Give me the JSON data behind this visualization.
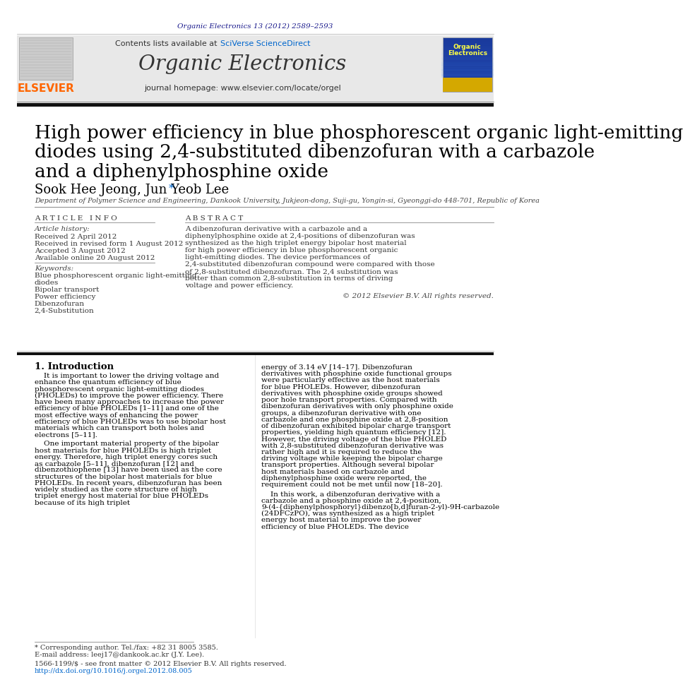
{
  "page_bg": "#ffffff",
  "journal_ref": "Organic Electronics 13 (2012) 2589–2593",
  "journal_ref_color": "#1a1a8c",
  "header_bg": "#e8e8e8",
  "journal_name": "Organic Electronics",
  "sciverse_color": "#0066cc",
  "homepage_line": "journal homepage: www.elsevier.com/locate/orgel",
  "elsevier_color": "#ff6600",
  "elsevier_text": "ELSEVIER",
  "title_line1": "High power efficiency in blue phosphorescent organic light-emitting",
  "title_line2": "diodes using 2,4-substituted dibenzofuran with a carbazole",
  "title_line3": "and a diphenylphosphine oxide",
  "authors_main": "Sook Hee Jeong, Jun Yeob Lee ",
  "authors_star": "*",
  "affiliation": "Department of Polymer Science and Engineering, Dankook University, Jukjeon-dong, Suji-gu, Yongin-si, Gyeonggi-do 448-701, Republic of Korea",
  "article_info_header": "A R T I C L E   I N F O",
  "abstract_header": "A B S T R A C T",
  "article_history_label": "Article history:",
  "received1": "Received 2 April 2012",
  "received2": "Received in revised form 1 August 2012",
  "accepted": "Accepted 3 August 2012",
  "available": "Available online 20 August 2012",
  "keywords_label": "Keywords:",
  "keywords": [
    "Blue phosphorescent organic light-emitting",
    "diodes",
    "Bipolar transport",
    "Power efficiency",
    "Dibenzofuran",
    "2,4-Substitution"
  ],
  "abstract_text": "A dibenzofuran derivative with a carbazole and a diphenylphosphine oxide at 2,4-positions of dibenzofuran was synthesized as the high triplet energy bipolar host material for high power efficiency in blue phosphorescent organic light-emitting diodes. The device performances of 2,4-substituted dibenzofuran compound were compared with those of 2,8-substituted dibenzofuran. The 2,4 substitution was better than common 2,8-substitution in terms of driving voltage and power efficiency.",
  "copyright": "© 2012 Elsevier B.V. All rights reserved.",
  "intro_header": "1. Introduction",
  "intro_text1": "It is important to lower the driving voltage and enhance the quantum efficiency of blue phosphorescent organic light-emitting diodes (PHOLEDs) to improve the power efficiency. There have been many approaches to increase the power efficiency of blue PHOLEDs [1–11] and one of the most effective ways of enhancing the power efficiency of blue PHOLEDs was to use bipolar host materials which can transport both holes and electrons [5–11].",
  "intro_text2": "One important material property of the bipolar host materials for blue PHOLEDs is high triplet energy. Therefore, high triplet energy cores such as carbazole [5–11], dibenzofuran [12] and dibenzothiophene [13] have been used as the core structures of the bipolar host materials for blue PHOLEDs. In recent years, dibenzofuran has been widely studied as the core structure of high triplet energy host material for blue PHOLEDs because of its high triplet",
  "right_text1": "energy of 3.14 eV [14–17]. Dibenzofuran derivatives with phosphine oxide functional groups were particularly effective as the host materials for blue PHOLEDs. However, dibenzofuran derivatives with phosphine oxide groups showed poor hole transport properties. Compared with dibenzofuran derivatives with only phosphine oxide groups, a dibenzofuran derivative with one carbazole and one phosphine oxide at 2,8-position of dibenzofuran exhibited bipolar charge transport properties, yielding high quantum efficiency [12]. However, the driving voltage of the blue PHOLED with 2,8-substituted dibenzofuran derivative was rather high and it is required to reduce the driving voltage while keeping the bipolar charge transport properties. Although several bipolar host materials based on carbazole and diphenylphosphine oxide were reported, the requirement could not be met until now [18–20].",
  "right_text2": "In this work, a dibenzofuran derivative with a carbazole and a phosphine oxide at 2,4-position, 9-(4-{diphenylphosphoryl}dibenzo[b,d]furan-2-yl)-9H-carbazole (24DFCzPO), was synthesized as a high triplet energy host material to improve the power efficiency of blue PHOLEDs. The device",
  "footnote1": "* Corresponding author. Tel./fax: +82 31 8005 3585.",
  "footnote2": "E-mail address: leej17@dankook.ac.kr (J.Y. Lee).",
  "footnote3": "1566-1199/$ - see front matter © 2012 Elsevier B.V. All rights reserved.",
  "footnote4": "http://dx.doi.org/10.1016/j.orgel.2012.08.005",
  "footnote4_color": "#0066cc",
  "thick_bar_color": "#111111"
}
